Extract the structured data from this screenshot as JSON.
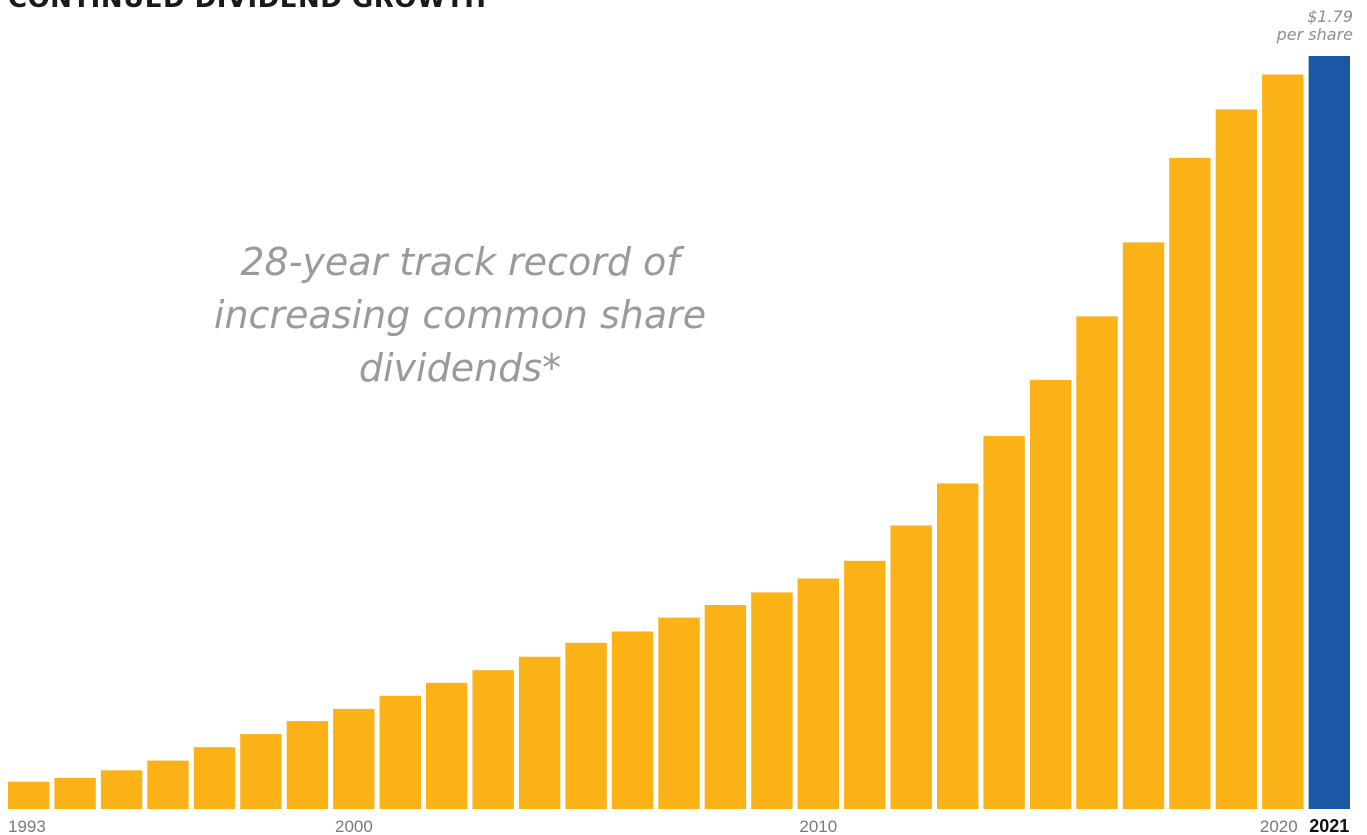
{
  "title": "CONTINUED DIVIDEND GROWTH",
  "subtitle_lines": [
    "28-year track record of",
    "increasing common share dividends*"
  ],
  "end_label": {
    "value": "$1.79",
    "unit": "per share"
  },
  "colors": {
    "bar": "#FBB216",
    "highlight": "#1C57A5",
    "text_muted": "#9a9a9a"
  },
  "chart_data": {
    "type": "bar",
    "title": "CONTINUED DIVIDEND GROWTH",
    "xlabel": "",
    "ylabel": "",
    "categories": [
      "1993",
      "1994",
      "1995",
      "1996",
      "1997",
      "1998",
      "1999",
      "2000",
      "2001",
      "2002",
      "2003",
      "2004",
      "2005",
      "2006",
      "2007",
      "2008",
      "2009",
      "2010",
      "2011",
      "2012",
      "2013",
      "2014",
      "2015",
      "2016",
      "2017",
      "2018",
      "2019",
      "2020",
      "2021"
    ],
    "values": [
      0.065,
      0.074,
      0.092,
      0.115,
      0.147,
      0.178,
      0.209,
      0.238,
      0.269,
      0.3,
      0.33,
      0.362,
      0.395,
      0.422,
      0.455,
      0.485,
      0.515,
      0.548,
      0.59,
      0.674,
      0.774,
      0.887,
      1.02,
      1.171,
      1.347,
      1.548,
      1.663,
      1.746,
      1.79
    ],
    "ylim": [
      0,
      1.82
    ],
    "x_tick_labels": [
      "1993",
      "2000",
      "2010",
      "2020",
      "2021"
    ],
    "highlight_category": "2021",
    "grid": false,
    "legend": "none"
  }
}
